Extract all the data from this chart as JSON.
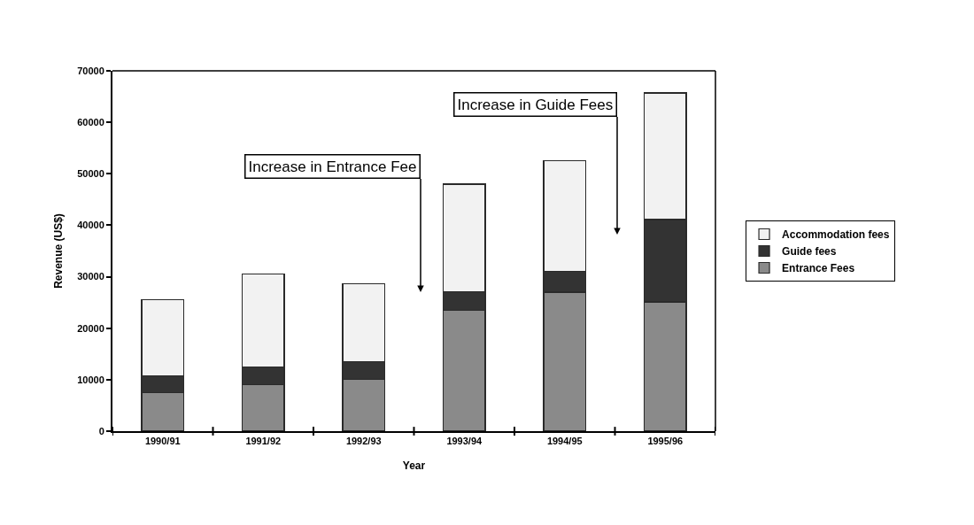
{
  "chart_data": {
    "type": "bar",
    "stacked": true,
    "xlabel": "Year",
    "ylabel": "Revenue (US$)",
    "categories": [
      "1990/91",
      "1991/92",
      "1992/93",
      "1993/94",
      "1994/95",
      "1995/96"
    ],
    "series": [
      {
        "name": "Entrance Fees",
        "color": "#8a8a8a",
        "values": [
          7500,
          9000,
          10000,
          23500,
          27000,
          25100
        ]
      },
      {
        "name": "Guide fees",
        "color": "#333333",
        "values": [
          3300,
          3500,
          3500,
          3600,
          4100,
          16000
        ]
      },
      {
        "name": "Accommodation fees",
        "color": "#f2f2f2",
        "values": [
          14700,
          18000,
          15200,
          20900,
          21400,
          24600
        ]
      }
    ],
    "ylim": [
      0,
      70000
    ],
    "yticks": [
      0,
      10000,
      20000,
      30000,
      40000,
      50000,
      60000,
      70000
    ],
    "grid": false,
    "legend": "right",
    "annotations": [
      "Increase in Entrance Fee",
      "Increase in Guide Fees"
    ]
  }
}
